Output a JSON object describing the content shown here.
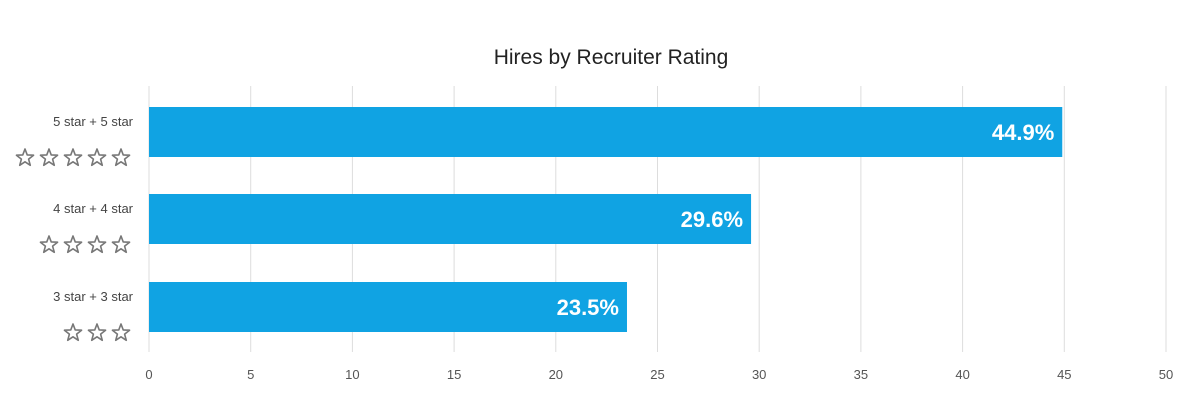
{
  "chart_data": {
    "type": "bar",
    "orientation": "horizontal",
    "title": "Hires by Recruiter Rating",
    "categories": [
      "5 star + 5 star",
      "4 star + 4 star",
      "3 star + 3 star"
    ],
    "star_counts": [
      5,
      4,
      3
    ],
    "values": [
      44.9,
      29.6,
      23.5
    ],
    "data_labels": [
      "44.9%",
      "29.6%",
      "23.5%"
    ],
    "xlim": [
      0,
      50
    ],
    "xticks": [
      0,
      5,
      10,
      15,
      20,
      25,
      30,
      35,
      40,
      45,
      50
    ],
    "xlabel": "",
    "ylabel": "",
    "grid": true,
    "legend": "none",
    "colors": {
      "bar": "#10a3e3",
      "grid": "#dddddd",
      "bar_label": "#ffffff"
    }
  }
}
